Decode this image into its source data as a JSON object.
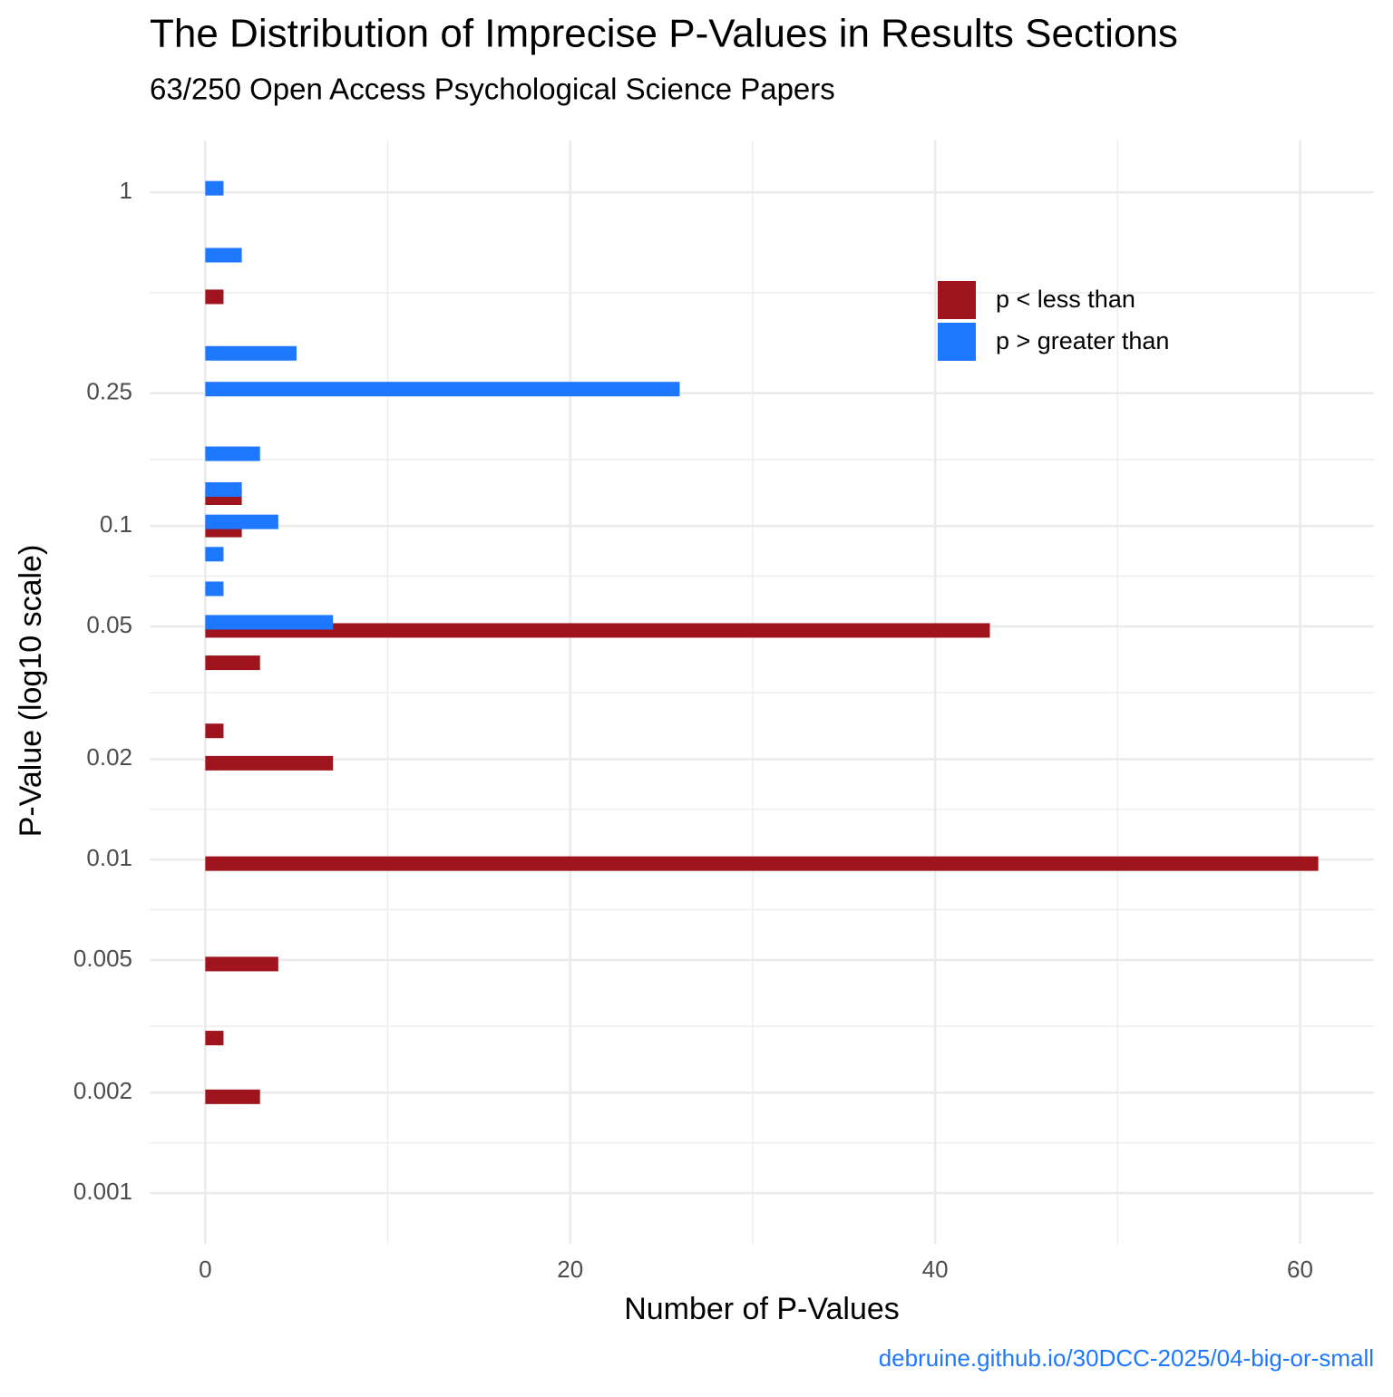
{
  "chart_data": {
    "type": "bar",
    "orientation": "horizontal",
    "title": "The Distribution of Imprecise P-Values in Results Sections",
    "subtitle": "63/250 Open Access Psychological Science Papers",
    "x_label": "Number of P-Values",
    "y_label": "P-Value (log10 scale)",
    "caption": "debruine.github.io/30DCC-2025/04-big-or-small",
    "caption_color": "#1e78ff",
    "xlim": [
      -3.05,
      64.05
    ],
    "xticks": [
      0,
      20,
      40,
      60
    ],
    "ylim": [
      0.000705,
      1.43
    ],
    "yticks": [
      1,
      0.25,
      0.1,
      0.05,
      0.02,
      0.01,
      0.005,
      0.002,
      0.001
    ],
    "log_y": true,
    "grid": true,
    "legend_position": "top-right",
    "series": [
      {
        "name": "p < less than",
        "color": "#a0141e",
        "y": [
          0.5,
          0.125,
          0.1,
          0.05,
          0.04,
          0.025,
          0.02,
          0.01,
          0.005,
          0.003,
          0.002
        ],
        "values": [
          1,
          2,
          2,
          43,
          3,
          1,
          7,
          61,
          4,
          1,
          3
        ]
      },
      {
        "name": "p > greater than",
        "color": "#1e78ff",
        "y": [
          1,
          0.63,
          0.32,
          0.25,
          0.16,
          0.125,
          0.1,
          0.08,
          0.063,
          0.05
        ],
        "values": [
          1,
          2,
          5,
          26,
          3,
          2,
          4,
          1,
          1,
          7
        ]
      }
    ]
  }
}
